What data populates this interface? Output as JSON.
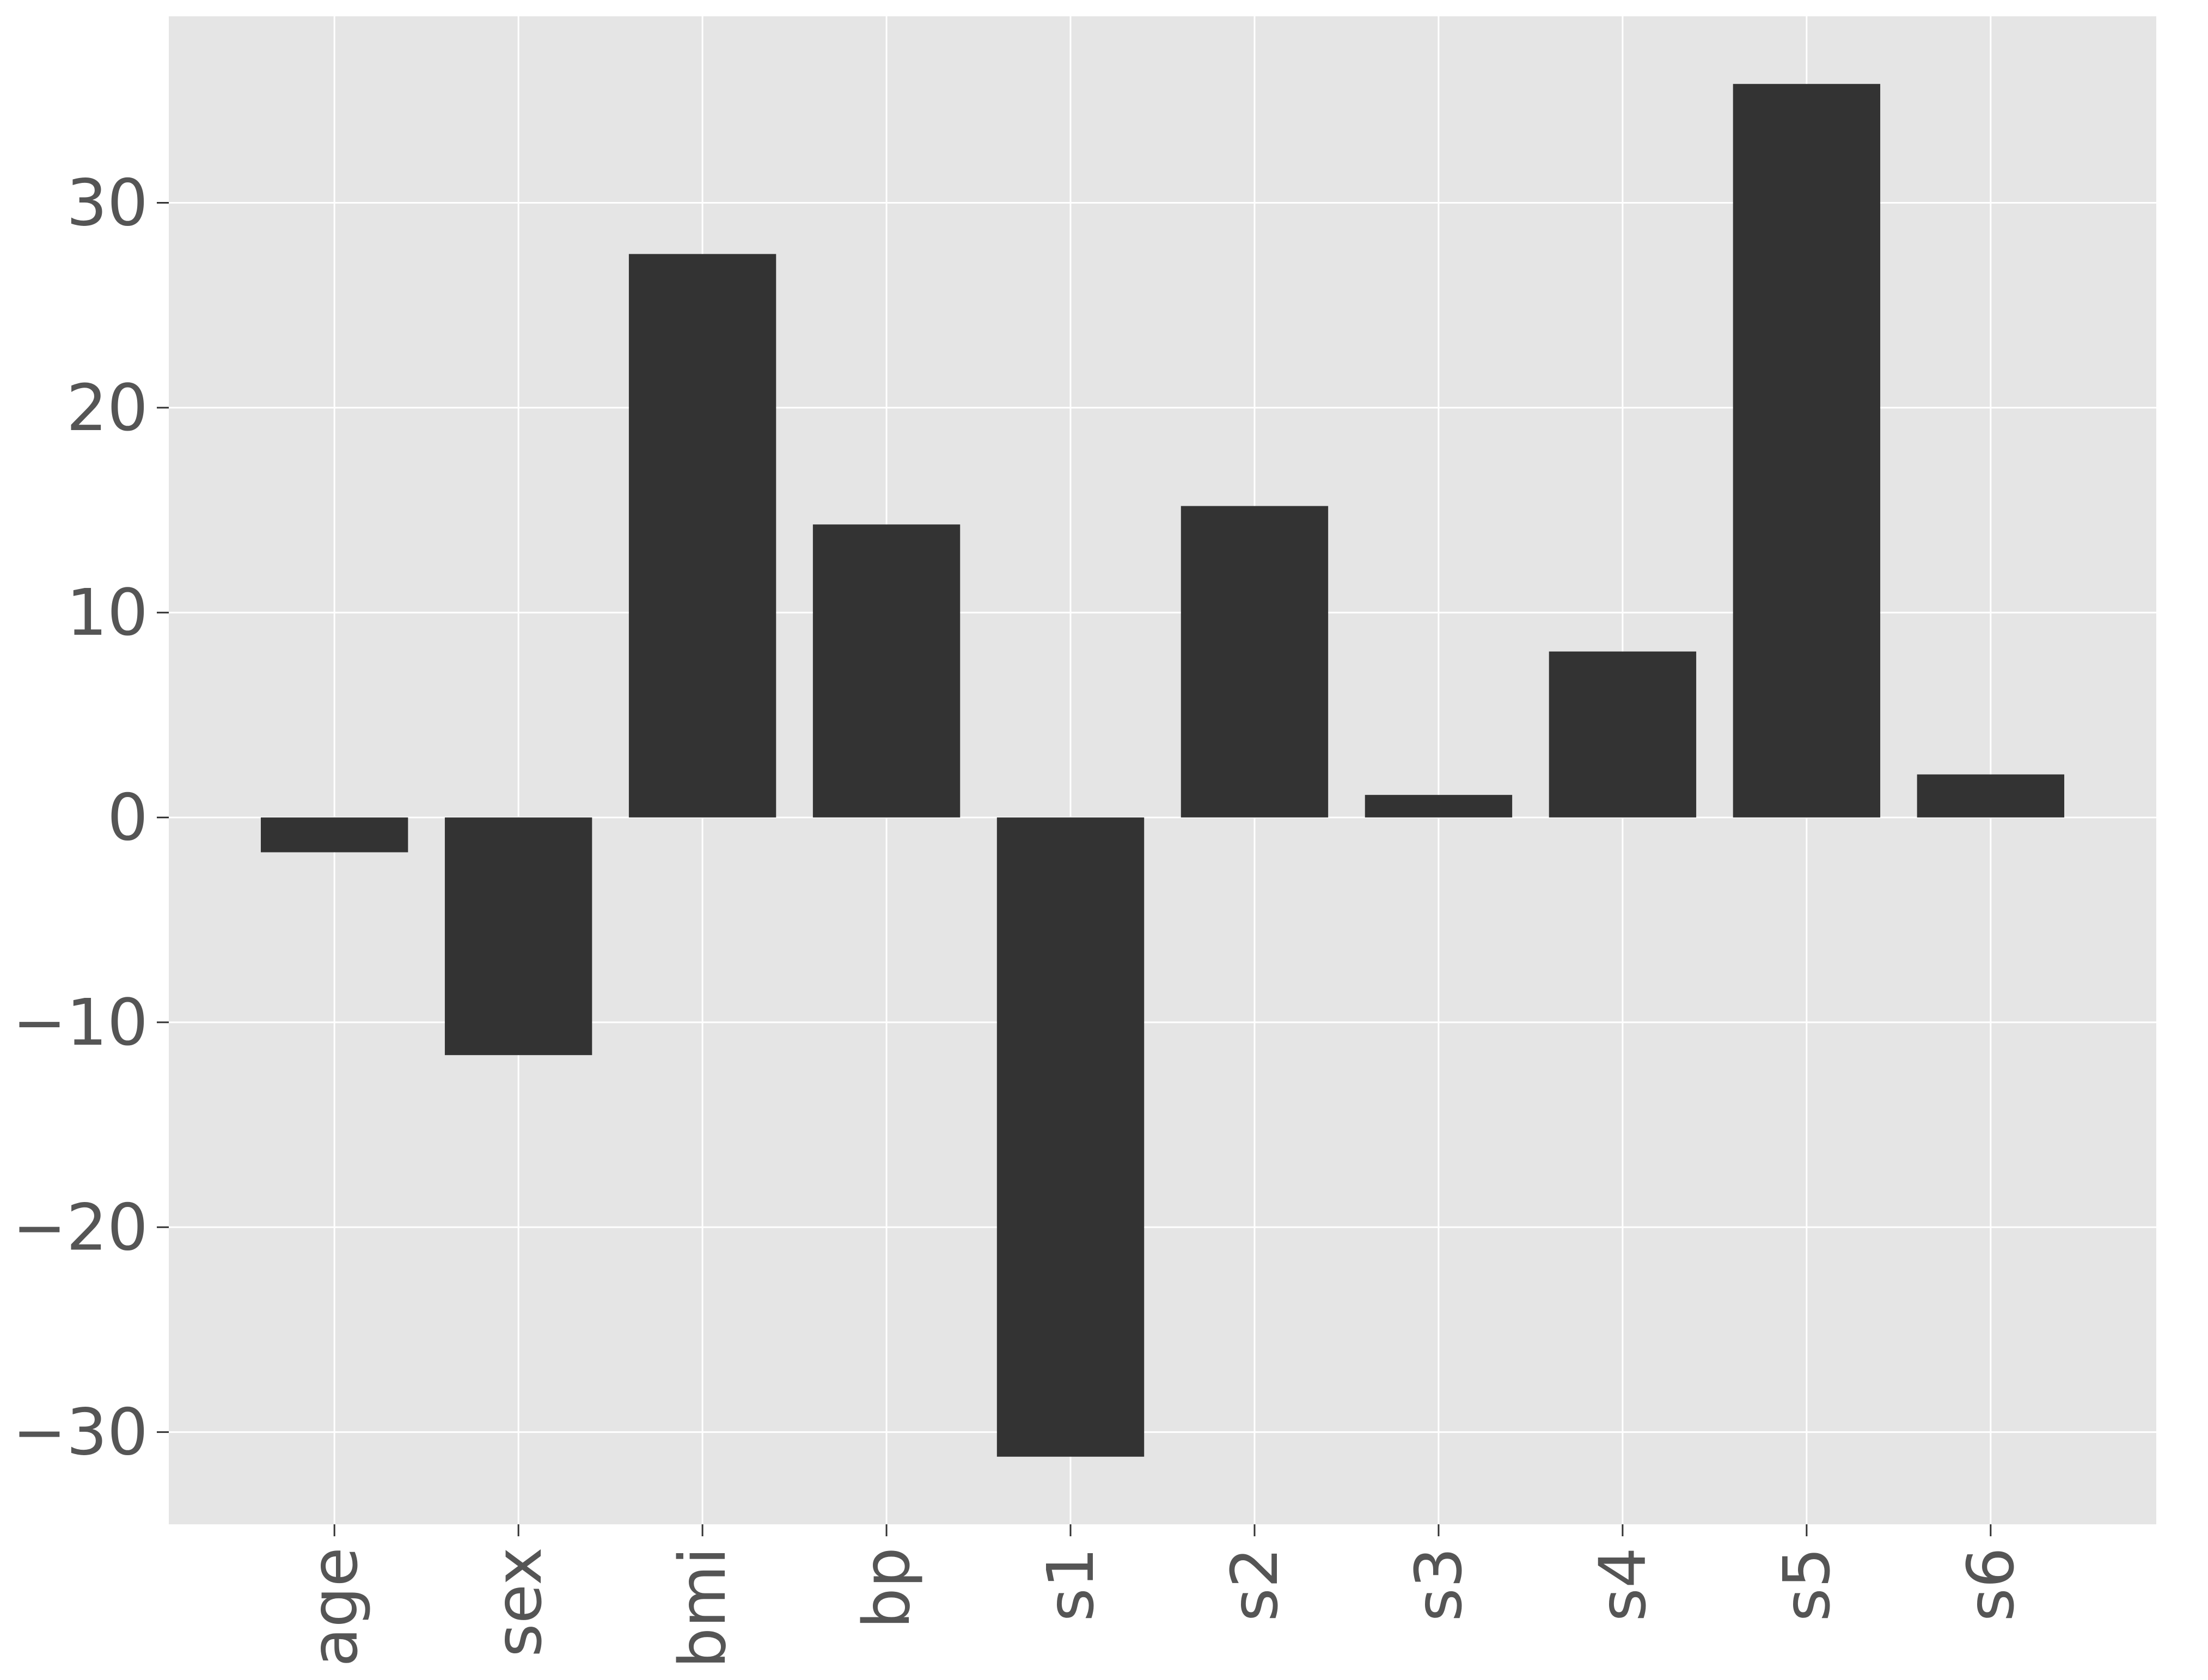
{
  "chart_data": {
    "type": "bar",
    "title": "",
    "xlabel": "",
    "ylabel": "",
    "categories": [
      "age",
      "sex",
      "bmi",
      "bp",
      "s1",
      "s2",
      "s3",
      "s4",
      "s5",
      "s6"
    ],
    "values": [
      -1.7,
      -11.6,
      27.5,
      14.3,
      -31.2,
      15.2,
      1.1,
      8.1,
      35.8,
      2.1
    ],
    "ylim": [
      -34.5,
      39.1
    ],
    "yticks": [
      30,
      20,
      10,
      0,
      -10,
      -20,
      -30
    ],
    "ytick_labels": [
      "30",
      "20",
      "10",
      "0",
      "−10",
      "−20",
      "−30"
    ],
    "grid": true,
    "colors": {
      "panel_background": "#e5e5e5",
      "gridline": "#ffffff",
      "bar": "#333333",
      "tick_text": "#555555"
    }
  }
}
